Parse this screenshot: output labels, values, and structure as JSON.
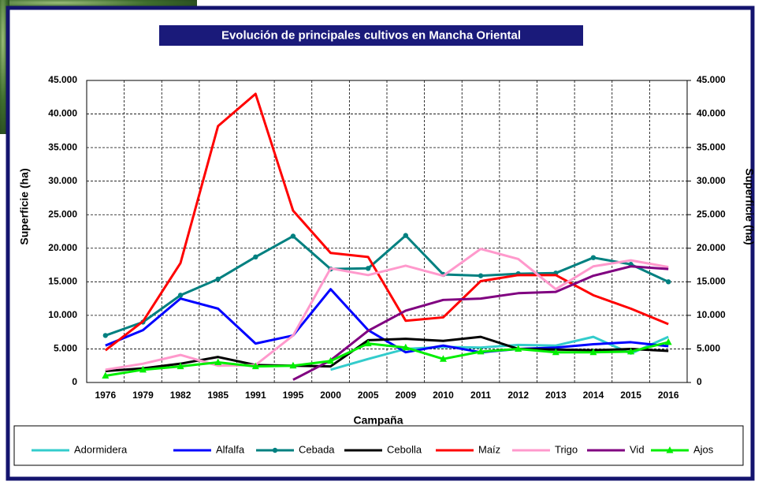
{
  "chart_data": {
    "type": "line",
    "title": "Evolución de principales cultivos en Mancha Oriental",
    "x_label": "Campaña",
    "y_label": "Superficie (ha)",
    "y2_label": "Superficie (ha)",
    "categories": [
      "1976",
      "1979",
      "1982",
      "1985",
      "1991",
      "1995",
      "2000",
      "2005",
      "2009",
      "2010",
      "2011",
      "2012",
      "2013",
      "2014",
      "2015",
      "2016"
    ],
    "ylim": [
      0,
      45000
    ],
    "yticks": [
      {
        "value": 0,
        "label": "0"
      },
      {
        "value": 5000,
        "label": "5.000"
      },
      {
        "value": 10000,
        "label": "10.000"
      },
      {
        "value": 15000,
        "label": "15.000"
      },
      {
        "value": 20000,
        "label": "20.000"
      },
      {
        "value": 25000,
        "label": "25.000"
      },
      {
        "value": 30000,
        "label": "30.000"
      },
      {
        "value": 35000,
        "label": "35.000"
      },
      {
        "value": 40000,
        "label": "40.000"
      },
      {
        "value": 45000,
        "label": "45.000"
      }
    ],
    "y2lim": [
      0,
      45000
    ],
    "y2ticks": [
      {
        "value": 0,
        "label": "0"
      },
      {
        "value": 5000,
        "label": "5.000"
      },
      {
        "value": 10000,
        "label": "10.000"
      },
      {
        "value": 15000,
        "label": "15.000"
      },
      {
        "value": 20000,
        "label": "20.000"
      },
      {
        "value": 25000,
        "label": "25.000"
      },
      {
        "value": 30000,
        "label": "30.000"
      },
      {
        "value": 35000,
        "label": "35.000"
      },
      {
        "value": 40000,
        "label": "40.000"
      },
      {
        "value": 45000,
        "label": "45.000"
      }
    ],
    "grid": true,
    "legend": "bottom",
    "series": [
      {
        "name": "Adormidera",
        "color": "#33cccc",
        "values": [
          null,
          null,
          null,
          null,
          null,
          null,
          1900,
          3500,
          5000,
          5300,
          5200,
          5600,
          5500,
          6800,
          4300,
          6800
        ]
      },
      {
        "name": "Alfalfa",
        "color": "#0000ff",
        "values": [
          5500,
          7800,
          12500,
          11000,
          5800,
          7000,
          13900,
          7800,
          4500,
          5500,
          4500,
          5000,
          5200,
          5700,
          6000,
          5400
        ]
      },
      {
        "name": "Cebada",
        "color": "#008080",
        "marker": "circle",
        "values": [
          7000,
          9000,
          13000,
          15400,
          18700,
          21800,
          16900,
          17000,
          21900,
          16100,
          15900,
          16200,
          16300,
          18600,
          17600,
          15000
        ]
      },
      {
        "name": "Cebolla",
        "color": "#000000",
        "values": [
          1700,
          2100,
          2800,
          3800,
          2600,
          2500,
          2400,
          6300,
          6500,
          6200,
          6800,
          5000,
          4900,
          4800,
          5000,
          4700
        ]
      },
      {
        "name": "Maíz",
        "color": "#ff0000",
        "values": [
          4800,
          9100,
          17800,
          38200,
          43000,
          25600,
          19300,
          18700,
          9200,
          9700,
          15100,
          16000,
          16000,
          13000,
          11000,
          8700
        ]
      },
      {
        "name": "Trigo",
        "color": "#ff99cc",
        "values": [
          1900,
          2800,
          4100,
          2500,
          2600,
          7000,
          17000,
          16000,
          17400,
          15900,
          19900,
          18400,
          13900,
          17300,
          18200,
          17200
        ]
      },
      {
        "name": "Vid",
        "color": "#800080",
        "values": [
          null,
          null,
          null,
          null,
          null,
          400,
          3300,
          7700,
          10700,
          12300,
          12500,
          13300,
          13500,
          15900,
          17300,
          16900
        ]
      },
      {
        "name": "Ajos",
        "color": "#00ee00",
        "marker": "triangle",
        "values": [
          1000,
          1900,
          2400,
          3000,
          2400,
          2500,
          3200,
          5800,
          5200,
          3500,
          4600,
          5000,
          4500,
          4500,
          4600,
          6000
        ]
      }
    ]
  }
}
